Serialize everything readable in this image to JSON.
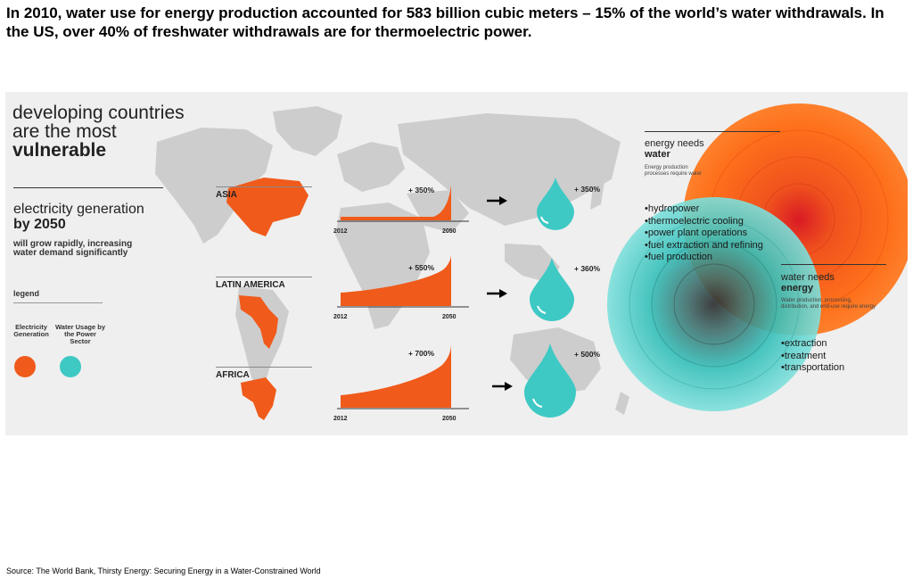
{
  "headline": "In 2010, water use for energy production accounted for 583 billion cubic meters – 15% of the world’s water withdrawals. In the US, over 40% of freshwater withdrawals are for thermoelectric power.",
  "infographic": {
    "title_line1": "developing countries",
    "title_line2": "are the most",
    "title_line3": "vulnerable",
    "subtitle_line1": "electricity generation",
    "subtitle_line2": "by 2050",
    "description": "will grow rapidly, increasing water demand significantly",
    "legend": {
      "title": "legend",
      "electricity_label": "Electricity Generation",
      "water_label": "Water Usage by the Power Sector",
      "electricity_color": "#f05a1a",
      "water_color": "#3ec9c4"
    },
    "regions": [
      {
        "name": "ASIA",
        "electricity_growth": "+ 350%",
        "water_growth": "+ 350%",
        "start_year": "2012",
        "end_year": "2050"
      },
      {
        "name": "LATIN AMERICA",
        "electricity_growth": "+ 550%",
        "water_growth": "+ 360%",
        "start_year": "2012",
        "end_year": "2050"
      },
      {
        "name": "AFRICA",
        "electricity_growth": "+ 700%",
        "water_growth": "+ 500%",
        "start_year": "2012",
        "end_year": "2050"
      }
    ],
    "energy_needs": {
      "title_line1": "energy needs",
      "title_line2": "water",
      "description": "Energy production processes require water",
      "items": [
        "hydropower",
        "thermoelectric cooling",
        "power plant operations",
        "fuel extraction and refining",
        "fuel production"
      ]
    },
    "water_needs": {
      "title_line1": "water needs",
      "title_line2": "energy",
      "description": "Water production, processing, distribution, and end-use require energy",
      "items": [
        "extraction",
        "treatment",
        "transportation"
      ]
    }
  },
  "source": "Source: The World Bank, Thirsty Energy: Securing Energy in a Water-Constrained World"
}
